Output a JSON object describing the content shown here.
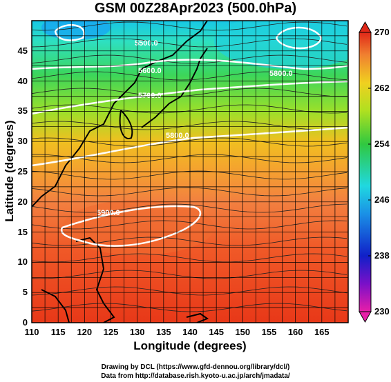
{
  "title": "GSM 00Z28Apr2023 (500.0hPa)",
  "chart_data": {
    "type": "heatmap",
    "title": "GSM 00Z28Apr2023 (500.0hPa)",
    "xlabel": "Longitude (degrees)",
    "ylabel": "Latitude  (degrees)",
    "xlim": [
      110,
      170
    ],
    "ylim": [
      0,
      50
    ],
    "xticks": [
      "110",
      "115",
      "120",
      "125",
      "130",
      "135",
      "140",
      "145",
      "150",
      "155",
      "160",
      "165"
    ],
    "yticks": [
      "0",
      "5",
      "10",
      "15",
      "20",
      "25",
      "30",
      "35",
      "40",
      "45"
    ],
    "colorbar": {
      "range": [
        230,
        270
      ],
      "ticks": [
        "230",
        "238",
        "246",
        "254",
        "262",
        "270"
      ]
    },
    "contour_labels": [
      "5500.0",
      "5600.0",
      "5700.0",
      "5800.0",
      "5900.0",
      "5800.0"
    ],
    "grid": true
  },
  "footer": {
    "line1": "Drawing by DCL (https://www.gfd-dennou.org/library/dcl/)",
    "line2": "Data from http://database.rish.kyoto-u.ac.jp/arch/jmadata/"
  }
}
